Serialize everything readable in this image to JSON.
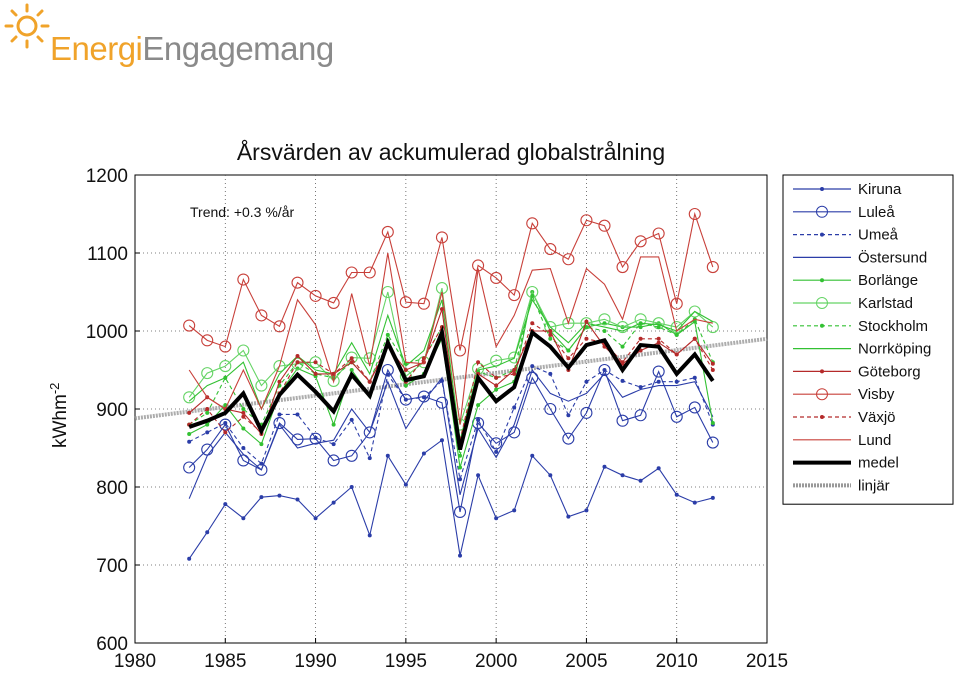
{
  "logo": {
    "part1": "Energi",
    "part2": "Engagemang",
    "brand_color": "#f0a32a",
    "text_color": "#8a8a8a"
  },
  "chart_data": {
    "type": "line",
    "title": "Årsvärden av ackumulerad globalstrålning",
    "ylabel": "kWhm",
    "ylabel_exponent": "-2",
    "xlim": [
      1980,
      2015
    ],
    "ylim": [
      600,
      1200
    ],
    "xticks": [
      1980,
      1985,
      1990,
      1995,
      2000,
      2005,
      2010,
      2015
    ],
    "yticks": [
      600,
      700,
      800,
      900,
      1000,
      1100,
      1200
    ],
    "grid": true,
    "legend_position": "outside-right",
    "annotation": "Trend: +0.3 %/år",
    "x": [
      1983,
      1984,
      1985,
      1986,
      1987,
      1988,
      1989,
      1990,
      1991,
      1992,
      1993,
      1994,
      1995,
      1996,
      1997,
      1998,
      1999,
      2000,
      2001,
      2002,
      2003,
      2004,
      2005,
      2006,
      2007,
      2008,
      2009,
      2010,
      2011,
      2012
    ],
    "series": [
      {
        "name": "Kiruna",
        "color": "#2b3da8",
        "style": "solid",
        "marker": "dot",
        "values": [
          708,
          742,
          778,
          760,
          787,
          789,
          784,
          760,
          780,
          800,
          738,
          840,
          803,
          843,
          860,
          712,
          815,
          760,
          770,
          840,
          815,
          762,
          770,
          826,
          815,
          808,
          824,
          790,
          780,
          786
        ]
      },
      {
        "name": "Luleå",
        "color": "#2b3da8",
        "style": "solid",
        "marker": "circle",
        "values": [
          825,
          848,
          880,
          834,
          822,
          882,
          861,
          862,
          834,
          840,
          870,
          950,
          912,
          916,
          908,
          768,
          882,
          856,
          870,
          940,
          900,
          862,
          895,
          950,
          885,
          892,
          948,
          890,
          902,
          857
        ]
      },
      {
        "name": "Umeå",
        "color": "#2b3da8",
        "style": "dashed",
        "marker": "dot",
        "values": [
          858,
          870,
          882,
          850,
          830,
          893,
          893,
          863,
          855,
          886,
          837,
          944,
          912,
          915,
          936,
          810,
          886,
          845,
          902,
          955,
          945,
          892,
          935,
          950,
          936,
          928,
          935,
          935,
          940,
          880
        ]
      },
      {
        "name": "Östersund",
        "color": "#2b3da8",
        "style": "solid",
        "marker": "none",
        "values": [
          785,
          840,
          870,
          842,
          822,
          880,
          850,
          856,
          860,
          900,
          870,
          935,
          875,
          910,
          940,
          790,
          875,
          838,
          880,
          950,
          920,
          910,
          920,
          945,
          915,
          925,
          930,
          930,
          935,
          890
        ]
      },
      {
        "name": "Borlänge",
        "color": "#33c133",
        "style": "solid",
        "marker": "dot",
        "values": [
          868,
          880,
          905,
          875,
          855,
          920,
          952,
          942,
          880,
          950,
          917,
          988,
          930,
          945,
          990,
          825,
          905,
          925,
          935,
          1050,
          1000,
          975,
          1005,
          1010,
          1005,
          1005,
          1010,
          995,
          1012,
          882
        ]
      },
      {
        "name": "Karlstad",
        "color": "#66d466",
        "style": "solid",
        "marker": "circle",
        "values": [
          915,
          946,
          955,
          975,
          930,
          955,
          958,
          960,
          936,
          966,
          965,
          1050,
          942,
          960,
          1055,
          880,
          952,
          962,
          966,
          1050,
          1005,
          1010,
          1010,
          1015,
          1005,
          1015,
          1010,
          1005,
          1025,
          1005
        ]
      },
      {
        "name": "Stockholm",
        "color": "#33c133",
        "style": "dashed",
        "marker": "dot",
        "values": [
          880,
          895,
          940,
          900,
          880,
          930,
          960,
          945,
          940,
          960,
          935,
          995,
          958,
          965,
          1005,
          840,
          948,
          940,
          950,
          1045,
          990,
          975,
          1005,
          1000,
          980,
          1010,
          1005,
          995,
          1015,
          960
        ]
      },
      {
        "name": "Norrköping",
        "color": "#33c133",
        "style": "solid",
        "marker": "none",
        "values": [
          910,
          930,
          940,
          960,
          900,
          945,
          968,
          950,
          945,
          985,
          945,
          1020,
          955,
          975,
          1040,
          860,
          950,
          955,
          965,
          1040,
          1005,
          985,
          1010,
          1005,
          1000,
          1010,
          1008,
          1000,
          1025,
          1012
        ]
      },
      {
        "name": "Göteborg",
        "color": "#b52a2a",
        "style": "solid",
        "marker": "dot",
        "values": [
          895,
          915,
          900,
          895,
          868,
          935,
          968,
          945,
          945,
          960,
          935,
          980,
          950,
          960,
          1028,
          850,
          945,
          930,
          950,
          1000,
          1000,
          950,
          1012,
          980,
          958,
          975,
          985,
          970,
          990,
          958
        ]
      },
      {
        "name": "Visby",
        "color": "#c8403a",
        "style": "solid",
        "marker": "circle",
        "values": [
          1007,
          988,
          980,
          1066,
          1020,
          1006,
          1062,
          1045,
          1036,
          1075,
          1075,
          1127,
          1037,
          1035,
          1120,
          975,
          1084,
          1068,
          1046,
          1138,
          1105,
          1092,
          1142,
          1135,
          1082,
          1115,
          1125,
          1035,
          1150,
          1082
        ]
      },
      {
        "name": "Växjö",
        "color": "#b52a2a",
        "style": "dashed",
        "marker": "dot",
        "values": [
          880,
          900,
          870,
          890,
          870,
          920,
          960,
          960,
          945,
          965,
          935,
          985,
          935,
          965,
          1005,
          860,
          960,
          940,
          945,
          1010,
          995,
          965,
          990,
          985,
          960,
          990,
          990,
          970,
          990,
          950
        ]
      },
      {
        "name": "Lund",
        "color": "#c8403a",
        "style": "solid",
        "marker": "none",
        "values": [
          950,
          915,
          900,
          950,
          900,
          955,
          1040,
          1008,
          935,
          1048,
          955,
          1100,
          960,
          958,
          1050,
          880,
          1080,
          980,
          1020,
          1078,
          1080,
          1010,
          1080,
          1060,
          1015,
          1095,
          1095,
          1000,
          1015,
          1010
        ]
      },
      {
        "name": "medel",
        "color": "#000000",
        "style": "bold",
        "marker": "none",
        "values": [
          877,
          885,
          895,
          920,
          872,
          918,
          944,
          922,
          897,
          944,
          917,
          985,
          937,
          942,
          998,
          848,
          940,
          910,
          928,
          998,
          980,
          953,
          982,
          988,
          950,
          982,
          980,
          945,
          970,
          936
        ]
      }
    ],
    "trend": {
      "name": "linjär",
      "color": "#999999",
      "x": [
        1980,
        2015
      ],
      "values": [
        888,
        990
      ]
    }
  }
}
